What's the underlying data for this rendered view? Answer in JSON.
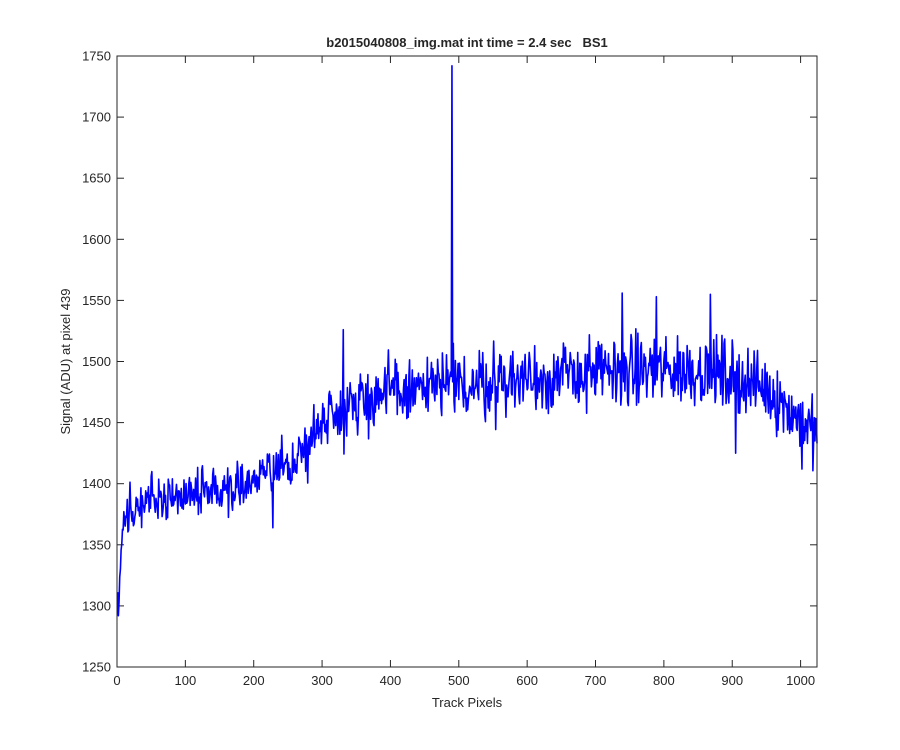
{
  "chart_data": {
    "type": "line",
    "title": "b2015040808_img.mat int time = 2.4 sec   BS1",
    "xlabel": "Track Pixels",
    "ylabel": "Signal (ADU) at pixel 439",
    "xlim": [
      0,
      1024
    ],
    "ylim": [
      1250,
      1750
    ],
    "xticks": [
      0,
      100,
      200,
      300,
      400,
      500,
      600,
      700,
      800,
      900,
      1000
    ],
    "yticks": [
      1250,
      1300,
      1350,
      1400,
      1450,
      1500,
      1550,
      1600,
      1650,
      1700,
      1750
    ],
    "grid": false,
    "legend": "none",
    "line_color": "#0000ff",
    "series": [
      {
        "points_count": 1024,
        "x_start": 1,
        "x_step": 1,
        "baseline": [
          [
            1,
            1298
          ],
          [
            5,
            1340
          ],
          [
            10,
            1365
          ],
          [
            20,
            1378
          ],
          [
            50,
            1388
          ],
          [
            100,
            1392
          ],
          [
            150,
            1396
          ],
          [
            200,
            1402
          ],
          [
            250,
            1415
          ],
          [
            280,
            1430
          ],
          [
            300,
            1455
          ],
          [
            350,
            1468
          ],
          [
            400,
            1474
          ],
          [
            450,
            1478
          ],
          [
            500,
            1480
          ],
          [
            550,
            1483
          ],
          [
            600,
            1486
          ],
          [
            650,
            1488
          ],
          [
            700,
            1490
          ],
          [
            750,
            1492
          ],
          [
            800,
            1493
          ],
          [
            850,
            1493
          ],
          [
            900,
            1488
          ],
          [
            950,
            1478
          ],
          [
            1000,
            1452
          ],
          [
            1024,
            1440
          ]
        ],
        "noise_amplitude": [
          [
            0,
            16
          ],
          [
            250,
            18
          ],
          [
            300,
            24
          ],
          [
            500,
            26
          ],
          [
            900,
            26
          ],
          [
            1024,
            24
          ]
        ],
        "features": [
          {
            "x": 490,
            "y": 1742
          },
          {
            "x": 2,
            "y": 1292
          },
          {
            "x": 5,
            "y": 1330
          },
          {
            "x": 228,
            "y": 1364
          },
          {
            "x": 331,
            "y": 1526
          },
          {
            "x": 739,
            "y": 1556
          },
          {
            "x": 789,
            "y": 1553
          },
          {
            "x": 868,
            "y": 1555
          },
          {
            "x": 905,
            "y": 1425
          },
          {
            "x": 1002,
            "y": 1412
          }
        ]
      }
    ]
  }
}
